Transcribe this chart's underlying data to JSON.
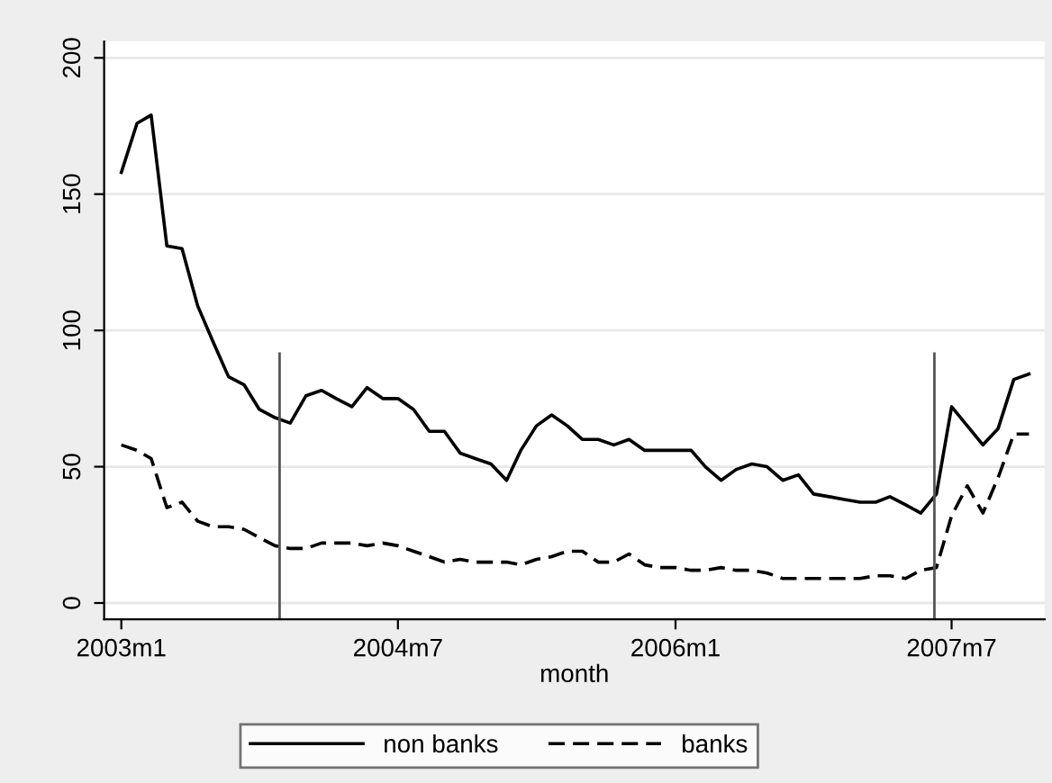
{
  "chart_data": {
    "type": "line",
    "xlabel": "month",
    "x": [
      "2003-01",
      "2003-02",
      "2003-03",
      "2003-04",
      "2003-05",
      "2003-06",
      "2003-07",
      "2003-08",
      "2003-09",
      "2003-10",
      "2003-11",
      "2003-12",
      "2004-01",
      "2004-02",
      "2004-03",
      "2004-04",
      "2004-05",
      "2004-06",
      "2004-07",
      "2004-08",
      "2004-09",
      "2004-10",
      "2004-11",
      "2004-12",
      "2005-01",
      "2005-02",
      "2005-03",
      "2005-04",
      "2005-05",
      "2005-06",
      "2005-07",
      "2005-08",
      "2005-09",
      "2005-10",
      "2005-11",
      "2005-12",
      "2006-01",
      "2006-02",
      "2006-03",
      "2006-04",
      "2006-05",
      "2006-06",
      "2006-07",
      "2006-08",
      "2006-09",
      "2006-10",
      "2006-11",
      "2006-12",
      "2007-01",
      "2007-02",
      "2007-03",
      "2007-04",
      "2007-05",
      "2007-06",
      "2007-07",
      "2007-08",
      "2007-09",
      "2007-10",
      "2007-11",
      "2007-12"
    ],
    "series": [
      {
        "name": "non banks",
        "color": "#000000",
        "line_style": "solid",
        "values": [
          158,
          176,
          179,
          131,
          130,
          109,
          96,
          83,
          80,
          71,
          68,
          66,
          76,
          78,
          75,
          72,
          79,
          75,
          75,
          71,
          63,
          63,
          55,
          53,
          51,
          45,
          56,
          65,
          69,
          65,
          60,
          60,
          58,
          60,
          56,
          56,
          56,
          56,
          50,
          45,
          49,
          51,
          50,
          45,
          47,
          40,
          39,
          38,
          37,
          37,
          39,
          36,
          33,
          40,
          72,
          65,
          58,
          64,
          82,
          84
        ]
      },
      {
        "name": "banks",
        "color": "#000000",
        "line_style": "dashed",
        "values": [
          58,
          56,
          53,
          35,
          37,
          30,
          28,
          28,
          27,
          24,
          21,
          20,
          20,
          22,
          22,
          22,
          21,
          22,
          21,
          19,
          17,
          15,
          16,
          15,
          15,
          15,
          14,
          16,
          17,
          19,
          19,
          15,
          15,
          18,
          14,
          13,
          13,
          12,
          12,
          13,
          12,
          12,
          11,
          9,
          9,
          9,
          9,
          9,
          9,
          10,
          10,
          9,
          12,
          13,
          32,
          43,
          33,
          46,
          62,
          62
        ]
      }
    ],
    "xlim": [
      "2002-11-28",
      "2008-01-01"
    ],
    "xticks": [
      {
        "value": "2003-01",
        "label": "2003m1"
      },
      {
        "value": "2004-07",
        "label": "2004m7"
      },
      {
        "value": "2006-01",
        "label": "2006m1"
      },
      {
        "value": "2007-07",
        "label": "2007m7"
      }
    ],
    "ylim": [
      -6,
      206
    ],
    "yticks": [
      0,
      50,
      100,
      150,
      200
    ],
    "ref_lines": [
      {
        "axis": "x",
        "value": "2003-11-10",
        "color": "#555555"
      },
      {
        "axis": "x",
        "value": "2007-05-28",
        "color": "#555555"
      }
    ],
    "grid": "y",
    "legend": "bottom",
    "marker": "none"
  }
}
